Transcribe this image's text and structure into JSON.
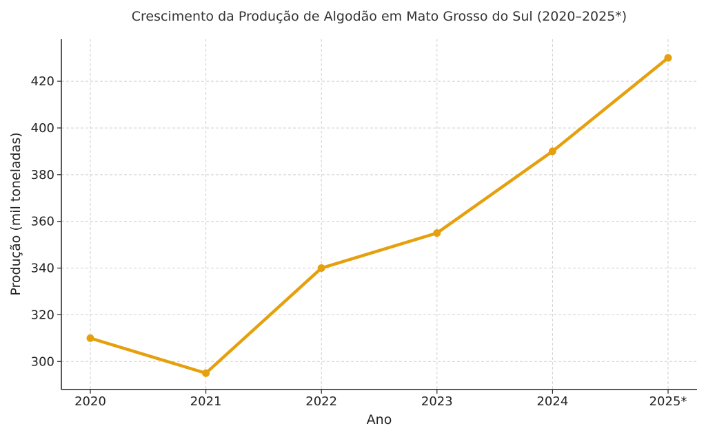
{
  "chart_data": {
    "type": "line",
    "title": "Crescimento da Produção de Algodão em Mato Grosso do Sul (2020–2025*)",
    "xlabel": "Ano",
    "ylabel": "Produção (mil toneladas)",
    "categories": [
      "2020",
      "2021",
      "2022",
      "2023",
      "2024",
      "2025*"
    ],
    "series": [
      {
        "values": [
          310,
          295,
          340,
          355,
          390,
          430
        ]
      }
    ],
    "yticks": [
      300,
      320,
      340,
      360,
      380,
      400,
      420
    ],
    "ylim": [
      288,
      438
    ],
    "grid": true,
    "line_color": "#E5A00D"
  }
}
